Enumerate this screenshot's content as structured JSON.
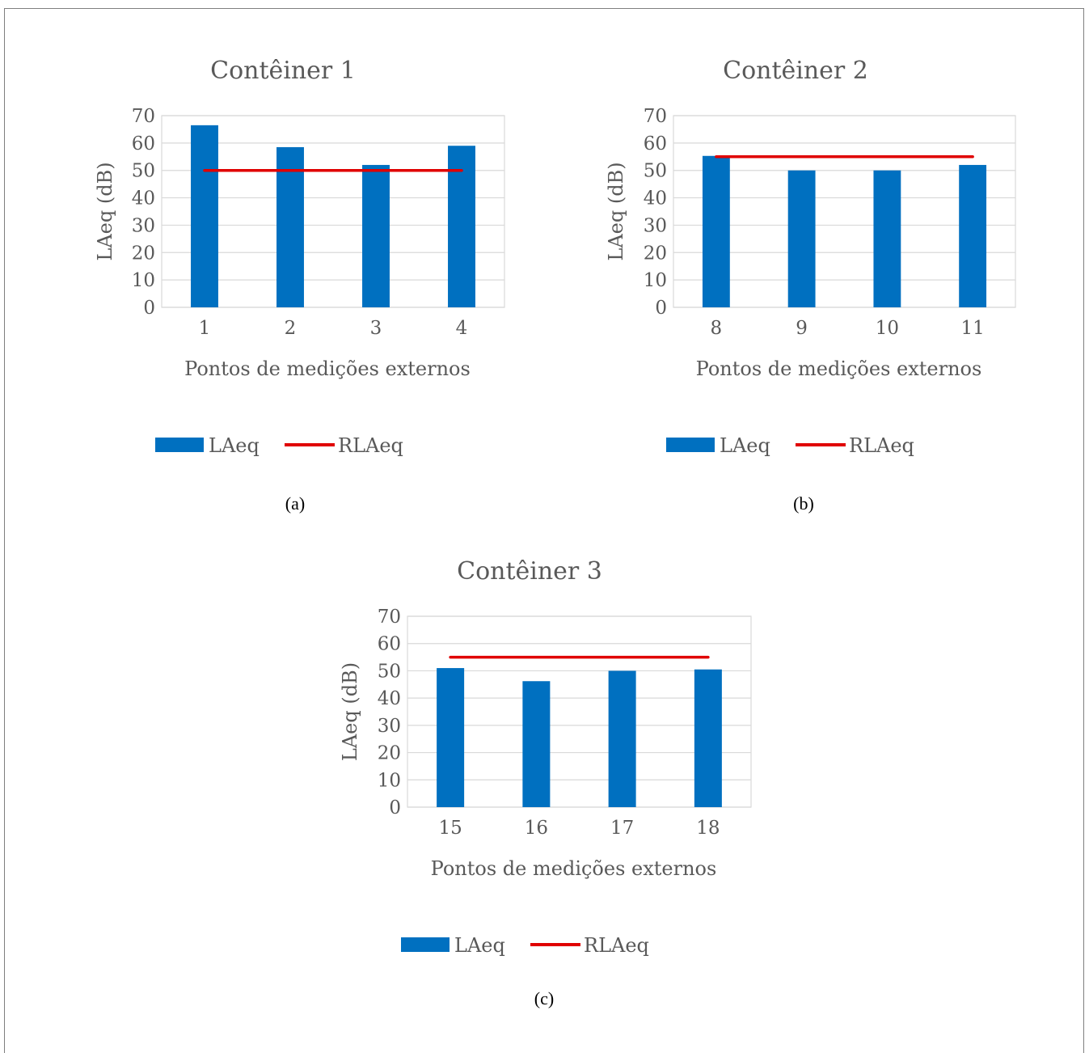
{
  "chart_data": [
    {
      "type": "bar",
      "title": "Contêiner 1",
      "xlabel": "Pontos de medições externos",
      "ylabel": "LAeq (dB)",
      "categories": [
        "1",
        "2",
        "3",
        "4"
      ],
      "ylim": [
        0,
        70
      ],
      "yticks": [
        "0",
        "10",
        "20",
        "30",
        "40",
        "50",
        "60",
        "70"
      ],
      "series": [
        {
          "name": "LAeq",
          "type": "bar",
          "values": [
            66.5,
            58.5,
            52,
            59
          ],
          "color": "#0070C0"
        },
        {
          "name": "RLAeq",
          "type": "line",
          "values": [
            50,
            50,
            50,
            50
          ],
          "color": "#E00000"
        }
      ],
      "grid": true,
      "legend": "bottom",
      "caption": "(a)"
    },
    {
      "type": "bar",
      "title": "Contêiner 2",
      "xlabel": "Pontos de medições externos",
      "ylabel": "LAeq (dB)",
      "categories": [
        "8",
        "9",
        "10",
        "11"
      ],
      "ylim": [
        0,
        70
      ],
      "yticks": [
        "0",
        "10",
        "20",
        "30",
        "40",
        "50",
        "60",
        "70"
      ],
      "series": [
        {
          "name": "LAeq",
          "type": "bar",
          "values": [
            55.3,
            50,
            50,
            52
          ],
          "color": "#0070C0"
        },
        {
          "name": "RLAeq",
          "type": "line",
          "values": [
            55,
            55,
            55,
            55
          ],
          "color": "#E00000"
        }
      ],
      "grid": true,
      "legend": "bottom",
      "caption": "(b)"
    },
    {
      "type": "bar",
      "title": "Contêiner 3",
      "xlabel": "Pontos de medições externos",
      "ylabel": "LAeq (dB)",
      "categories": [
        "15",
        "16",
        "17",
        "18"
      ],
      "ylim": [
        0,
        70
      ],
      "yticks": [
        "0",
        "10",
        "20",
        "30",
        "40",
        "50",
        "60",
        "70"
      ],
      "series": [
        {
          "name": "LAeq",
          "type": "bar",
          "values": [
            51,
            46.2,
            50,
            50.5
          ],
          "color": "#0070C0"
        },
        {
          "name": "RLAeq",
          "type": "line",
          "values": [
            55,
            55,
            55,
            55
          ],
          "color": "#E00000"
        }
      ],
      "grid": true,
      "legend": "bottom",
      "caption": "(c)"
    }
  ]
}
